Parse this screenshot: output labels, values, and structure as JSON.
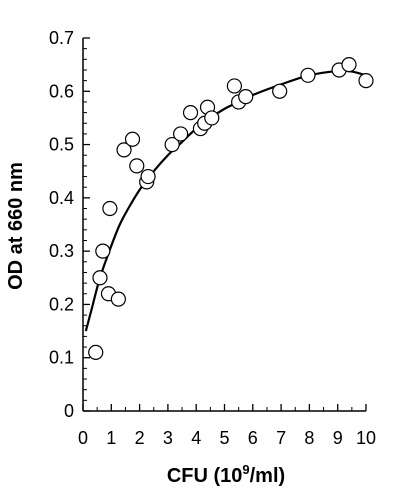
{
  "chart_data": {
    "type": "scatter",
    "xlabel": "CFU (10",
    "xlabel_sup": "9",
    "xlabel_tail": "/ml)",
    "ylabel": "OD at 660 nm",
    "xlim": [
      0,
      10
    ],
    "ylim": [
      0,
      0.7
    ],
    "x_ticks": [
      0,
      1,
      2,
      3,
      4,
      5,
      6,
      7,
      8,
      9,
      10
    ],
    "y_ticks": [
      0,
      0.1,
      0.2,
      0.3,
      0.4,
      0.5,
      0.6,
      0.7
    ],
    "x_tick_labels": [
      "0",
      "1",
      "2",
      "3",
      "4",
      "5",
      "6",
      "7",
      "8",
      "9",
      "10"
    ],
    "y_tick_labels": [
      "0",
      "0.1",
      "0.2",
      "0.3",
      "0.4",
      "0.5",
      "0.6",
      "0.7"
    ],
    "grid": false,
    "legend": "none",
    "marker": "open-circle",
    "colors": {
      "marker_stroke": "#000000",
      "marker_fill": "#ffffff",
      "curve": "#000000",
      "axis": "#000000"
    },
    "points": [
      {
        "x": 0.45,
        "y": 0.11
      },
      {
        "x": 0.6,
        "y": 0.25
      },
      {
        "x": 0.7,
        "y": 0.3
      },
      {
        "x": 0.9,
        "y": 0.22
      },
      {
        "x": 0.95,
        "y": 0.38
      },
      {
        "x": 1.25,
        "y": 0.21
      },
      {
        "x": 1.45,
        "y": 0.49
      },
      {
        "x": 1.75,
        "y": 0.51
      },
      {
        "x": 1.9,
        "y": 0.46
      },
      {
        "x": 2.25,
        "y": 0.43
      },
      {
        "x": 2.3,
        "y": 0.44
      },
      {
        "x": 3.15,
        "y": 0.5
      },
      {
        "x": 3.45,
        "y": 0.52
      },
      {
        "x": 3.8,
        "y": 0.56
      },
      {
        "x": 4.15,
        "y": 0.53
      },
      {
        "x": 4.3,
        "y": 0.54
      },
      {
        "x": 4.4,
        "y": 0.57
      },
      {
        "x": 4.55,
        "y": 0.55
      },
      {
        "x": 5.35,
        "y": 0.61
      },
      {
        "x": 5.5,
        "y": 0.58
      },
      {
        "x": 5.75,
        "y": 0.59
      },
      {
        "x": 6.95,
        "y": 0.6
      },
      {
        "x": 7.95,
        "y": 0.63
      },
      {
        "x": 9.05,
        "y": 0.64
      },
      {
        "x": 9.4,
        "y": 0.65
      },
      {
        "x": 10.0,
        "y": 0.62
      }
    ],
    "fit_curve": [
      {
        "x": 0.1,
        "y": 0.15
      },
      {
        "x": 0.3,
        "y": 0.19
      },
      {
        "x": 0.6,
        "y": 0.25
      },
      {
        "x": 1.0,
        "y": 0.31
      },
      {
        "x": 1.3,
        "y": 0.35
      },
      {
        "x": 1.6,
        "y": 0.38
      },
      {
        "x": 2.0,
        "y": 0.415
      },
      {
        "x": 2.5,
        "y": 0.45
      },
      {
        "x": 3.0,
        "y": 0.48
      },
      {
        "x": 3.5,
        "y": 0.505
      },
      {
        "x": 4.0,
        "y": 0.53
      },
      {
        "x": 4.5,
        "y": 0.55
      },
      {
        "x": 5.0,
        "y": 0.567
      },
      {
        "x": 5.5,
        "y": 0.58
      },
      {
        "x": 6.0,
        "y": 0.593
      },
      {
        "x": 7.0,
        "y": 0.613
      },
      {
        "x": 8.0,
        "y": 0.63
      },
      {
        "x": 9.0,
        "y": 0.638
      },
      {
        "x": 9.5,
        "y": 0.637
      },
      {
        "x": 10.0,
        "y": 0.63
      }
    ]
  }
}
